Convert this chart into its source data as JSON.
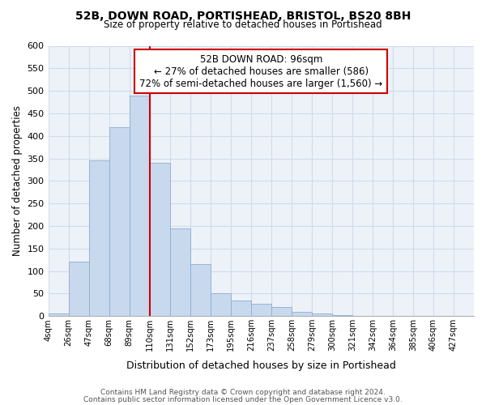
{
  "title": "52B, DOWN ROAD, PORTISHEAD, BRISTOL, BS20 8BH",
  "subtitle": "Size of property relative to detached houses in Portishead",
  "xlabel": "Distribution of detached houses by size in Portishead",
  "ylabel": "Number of detached properties",
  "footnote1": "Contains HM Land Registry data © Crown copyright and database right 2024.",
  "footnote2": "Contains public sector information licensed under the Open Government Licence v3.0.",
  "bin_labels": [
    "4sqm",
    "26sqm",
    "47sqm",
    "68sqm",
    "89sqm",
    "110sqm",
    "131sqm",
    "152sqm",
    "173sqm",
    "195sqm",
    "216sqm",
    "237sqm",
    "258sqm",
    "279sqm",
    "300sqm",
    "321sqm",
    "342sqm",
    "364sqm",
    "385sqm",
    "406sqm",
    "427sqm"
  ],
  "bar_heights": [
    5,
    120,
    345,
    420,
    490,
    340,
    195,
    115,
    50,
    35,
    28,
    20,
    10,
    5,
    2,
    1,
    1,
    0,
    0,
    0,
    0
  ],
  "bar_color": "#c8d8ed",
  "bar_edgecolor": "#8aafd0",
  "annotation_title": "52B DOWN ROAD: 96sqm",
  "annotation_line1": "← 27% of detached houses are smaller (586)",
  "annotation_line2": "72% of semi-detached houses are larger (1,560) →",
  "annotation_box_facecolor": "#ffffff",
  "annotation_box_edgecolor": "#cc0000",
  "vline_color": "#cc0000",
  "ylim": [
    0,
    600
  ],
  "yticks": [
    0,
    50,
    100,
    150,
    200,
    250,
    300,
    350,
    400,
    450,
    500,
    550,
    600
  ],
  "grid_color": "#d0dcea",
  "background_color": "#edf2f9",
  "vline_x_bin": 5
}
